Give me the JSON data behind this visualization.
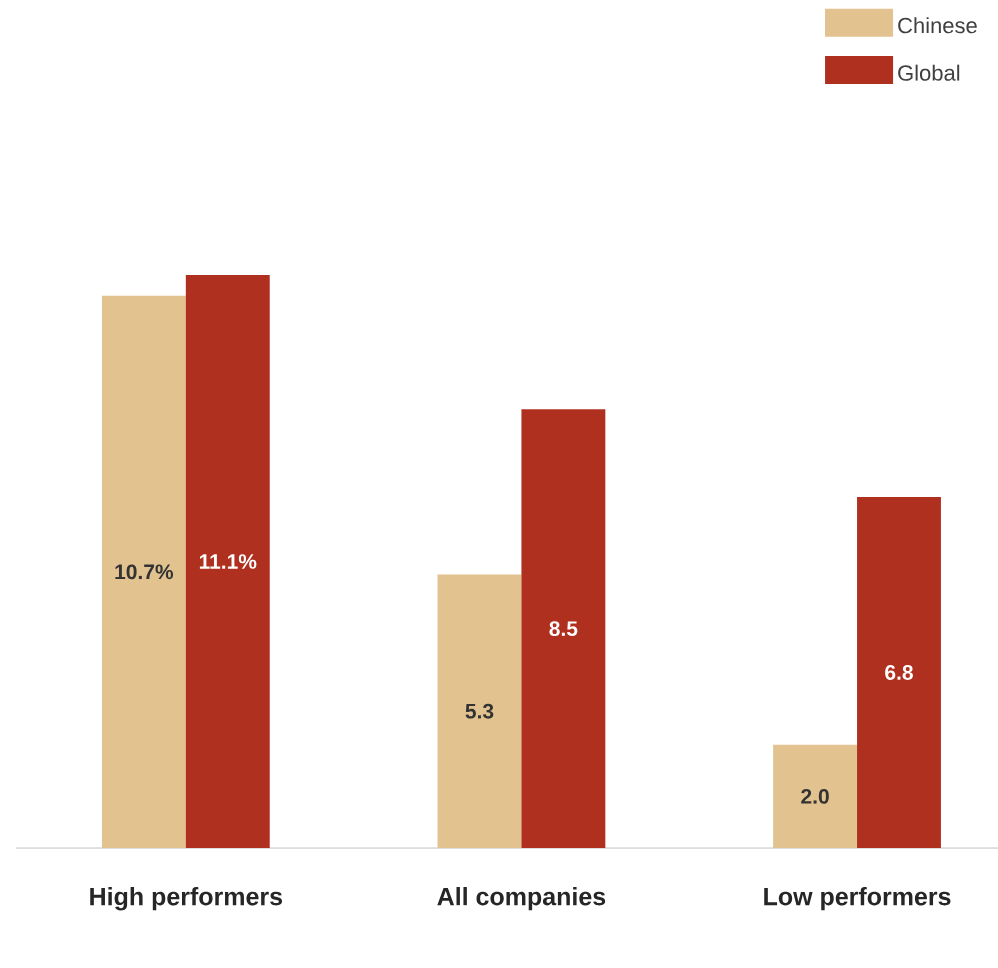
{
  "chart_data": {
    "type": "bar",
    "categories": [
      "High performers",
      "All companies",
      "Low performers"
    ],
    "series": [
      {
        "name": "Chinese",
        "color": "#e2c28f",
        "values": [
          10.7,
          5.3,
          2.0
        ],
        "value_labels": [
          "10.7%",
          "5.3",
          "2.0"
        ]
      },
      {
        "name": "Global",
        "color": "#b0301f",
        "values": [
          11.1,
          8.5,
          6.8
        ],
        "value_labels": [
          "11.1%",
          "8.5",
          "6.8"
        ]
      }
    ],
    "legend": "top right"
  }
}
